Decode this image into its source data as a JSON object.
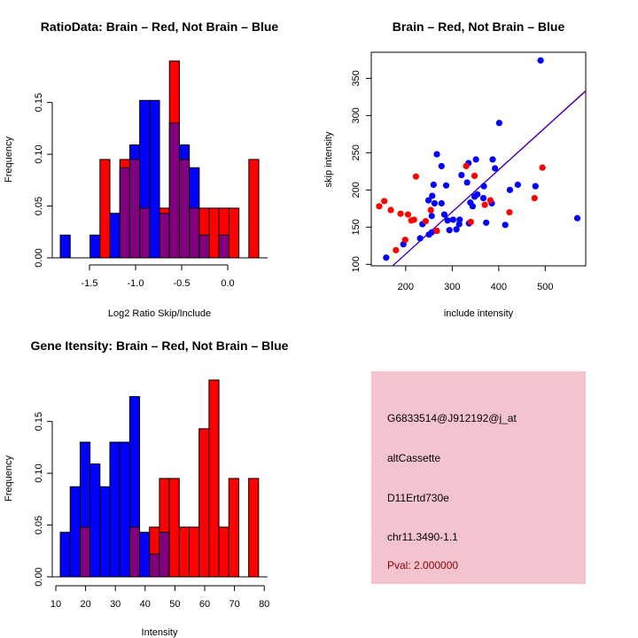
{
  "colors": {
    "red": "#FF0000",
    "blue": "#0000FF",
    "overlap": "#800080",
    "panel": "#F4C4CE"
  },
  "chart_data": [
    {
      "type": "bar",
      "title": "RatioData: Brain – Red, Not Brain – Blue",
      "xlabel": "Log2 Ratio Skip/Include",
      "ylabel": "Frequency",
      "xlim": [
        -1.82,
        0.34
      ],
      "ylim": [
        0,
        0.19
      ],
      "xticks": [
        "-1.5",
        "-1.0",
        "-0.5",
        "0.0"
      ],
      "xtick_values": [
        -1.5,
        -1.0,
        -0.5,
        0.0
      ],
      "yticks": [
        "0.00",
        "0.05",
        "0.10",
        "0.15"
      ],
      "ytick_values": [
        0,
        0.05,
        0.1,
        0.15
      ],
      "bin_start": -1.817,
      "bin_width": 0.1077,
      "series": [
        {
          "name": "Brain",
          "color": "red",
          "values": [
            0,
            0,
            0,
            0,
            0.095,
            0,
            0.095,
            0.095,
            0.048,
            0,
            0.048,
            0.19,
            0.095,
            0.048,
            0.048,
            0.048,
            0.048,
            0.048,
            0,
            0.095
          ]
        },
        {
          "name": "Not Brain",
          "color": "blue",
          "values": [
            0.022,
            0,
            0,
            0.022,
            0,
            0.043,
            0.087,
            0.109,
            0.152,
            0.152,
            0.043,
            0.13,
            0.109,
            0.087,
            0.022,
            0,
            0.022,
            0,
            0,
            0
          ]
        }
      ]
    },
    {
      "type": "scatter",
      "title": "Brain – Red, Not Brain – Blue",
      "xlabel": "include intensity",
      "ylabel": "skip intensity",
      "xlim": [
        126,
        587
      ],
      "ylim": [
        98,
        385
      ],
      "xticks": [
        "200",
        "300",
        "400",
        "500"
      ],
      "xtick_values": [
        200,
        300,
        400,
        500
      ],
      "yticks": [
        "100",
        "150",
        "200",
        "250",
        "300",
        "350"
      ],
      "ytick_values": [
        100,
        150,
        200,
        250,
        300,
        350
      ],
      "series": [
        {
          "name": "Not Brain",
          "color": "blue",
          "points": [
            [
              490,
              374
            ],
            [
              401,
              290
            ],
            [
              267,
              248
            ],
            [
              277,
              232
            ],
            [
              335,
              236
            ],
            [
              351,
              241
            ],
            [
              387,
              241
            ],
            [
              392,
              229
            ],
            [
              320,
              220
            ],
            [
              332,
              210
            ],
            [
              260,
              207
            ],
            [
              287,
              206
            ],
            [
              368,
              205
            ],
            [
              424,
              200
            ],
            [
              441,
              207
            ],
            [
              479,
              205
            ],
            [
              257,
              192
            ],
            [
              249,
              186
            ],
            [
              262,
              182
            ],
            [
              277,
              182
            ],
            [
              354,
              194
            ],
            [
              348,
              191
            ],
            [
              339,
              183
            ],
            [
              344,
              178
            ],
            [
              367,
              189
            ],
            [
              385,
              182
            ],
            [
              283,
              167
            ],
            [
              256,
              165
            ],
            [
              236,
              154
            ],
            [
              290,
              159
            ],
            [
              302,
              160
            ],
            [
              316,
              160
            ],
            [
              315,
              154
            ],
            [
              336,
              155
            ],
            [
              294,
              146
            ],
            [
              309,
              147
            ],
            [
              373,
              156
            ],
            [
              414,
              153
            ],
            [
              250,
              140
            ],
            [
              256,
              143
            ],
            [
              231,
              135
            ],
            [
              195,
              127
            ],
            [
              158,
              109
            ],
            [
              569,
              162
            ]
          ]
        },
        {
          "name": "Brain",
          "color": "red",
          "points": [
            [
              143,
              178
            ],
            [
              154,
              185
            ],
            [
              168,
              173
            ],
            [
              189,
              168
            ],
            [
              205,
              167
            ],
            [
              212,
              159
            ],
            [
              218,
              160
            ],
            [
              222,
              218
            ],
            [
              243,
              158
            ],
            [
              254,
              173
            ],
            [
              267,
              145
            ],
            [
              199,
              133
            ],
            [
              179,
              119
            ],
            [
              330,
              232
            ],
            [
              348,
              219
            ],
            [
              340,
              157
            ],
            [
              370,
              180
            ],
            [
              382,
              186
            ],
            [
              423,
              170
            ],
            [
              477,
              189
            ],
            [
              494,
              230
            ]
          ]
        }
      ],
      "fit_lines": [
        {
          "color": "red",
          "slope": 0.567,
          "intercept": 0.8
        },
        {
          "color": "blue",
          "slope": 0.566,
          "intercept": 0.5
        }
      ]
    },
    {
      "type": "bar",
      "title": "Gene Itensity: Brain – Red, Not Brain – Blue",
      "xlabel": "Intensity",
      "ylabel": "Frequency",
      "xlim": [
        11.5,
        78.2
      ],
      "ylim": [
        0,
        0.19
      ],
      "xticks": [
        "10",
        "20",
        "30",
        "40",
        "50",
        "60",
        "70",
        "80"
      ],
      "xtick_values": [
        10,
        20,
        30,
        40,
        50,
        60,
        70,
        80
      ],
      "yticks": [
        "0.00",
        "0.05",
        "0.10",
        "0.15"
      ],
      "ytick_values": [
        0,
        0.05,
        0.1,
        0.15
      ],
      "bin_start": 11.5,
      "bin_width": 3.33,
      "series": [
        {
          "name": "Brain",
          "color": "red",
          "values": [
            0,
            0,
            0.048,
            0,
            0,
            0,
            0,
            0.048,
            0,
            0.048,
            0.095,
            0.095,
            0.048,
            0.048,
            0.143,
            0.19,
            0.048,
            0.095,
            0,
            0.095
          ]
        },
        {
          "name": "Not Brain",
          "color": "blue",
          "values": [
            0.043,
            0.087,
            0.13,
            0.109,
            0.087,
            0.13,
            0.13,
            0.174,
            0.043,
            0.022,
            0.043,
            0,
            0,
            0,
            0,
            0,
            0,
            0,
            0,
            0
          ]
        }
      ]
    }
  ],
  "info_panel": {
    "probe_id": "G6833514@J912192@j_at",
    "event_type": "altCassette",
    "gene": "D11Ertd730e",
    "location": "chr11.3490-1.1",
    "pval": "Pval: 2.000000",
    "pval_color": "#8B0000"
  }
}
